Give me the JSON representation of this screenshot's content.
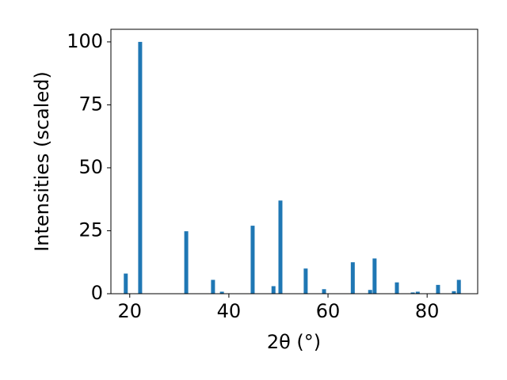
{
  "chart_data": {
    "type": "bar",
    "x_label": "2θ (°)",
    "y_label": "Intensities (scaled)",
    "x": [
      19.2,
      22.1,
      31.4,
      36.8,
      38.6,
      44.8,
      49.0,
      50.4,
      55.5,
      59.2,
      65.0,
      68.5,
      69.4,
      73.9,
      77.1,
      78.1,
      82.2,
      85.4,
      86.4
    ],
    "values": [
      8,
      100,
      24.8,
      5.5,
      0.8,
      27,
      3,
      37,
      10,
      1.8,
      12.5,
      1.5,
      14,
      4.5,
      0.5,
      0.8,
      3.5,
      1,
      5.5
    ],
    "color": "#1f77b4",
    "xlim": [
      16.2,
      90.2
    ],
    "xticks": [
      20,
      40,
      60,
      80
    ],
    "ylim": [
      0,
      105
    ],
    "yticks": [
      0,
      25,
      50,
      75,
      100
    ],
    "grid": false
  }
}
